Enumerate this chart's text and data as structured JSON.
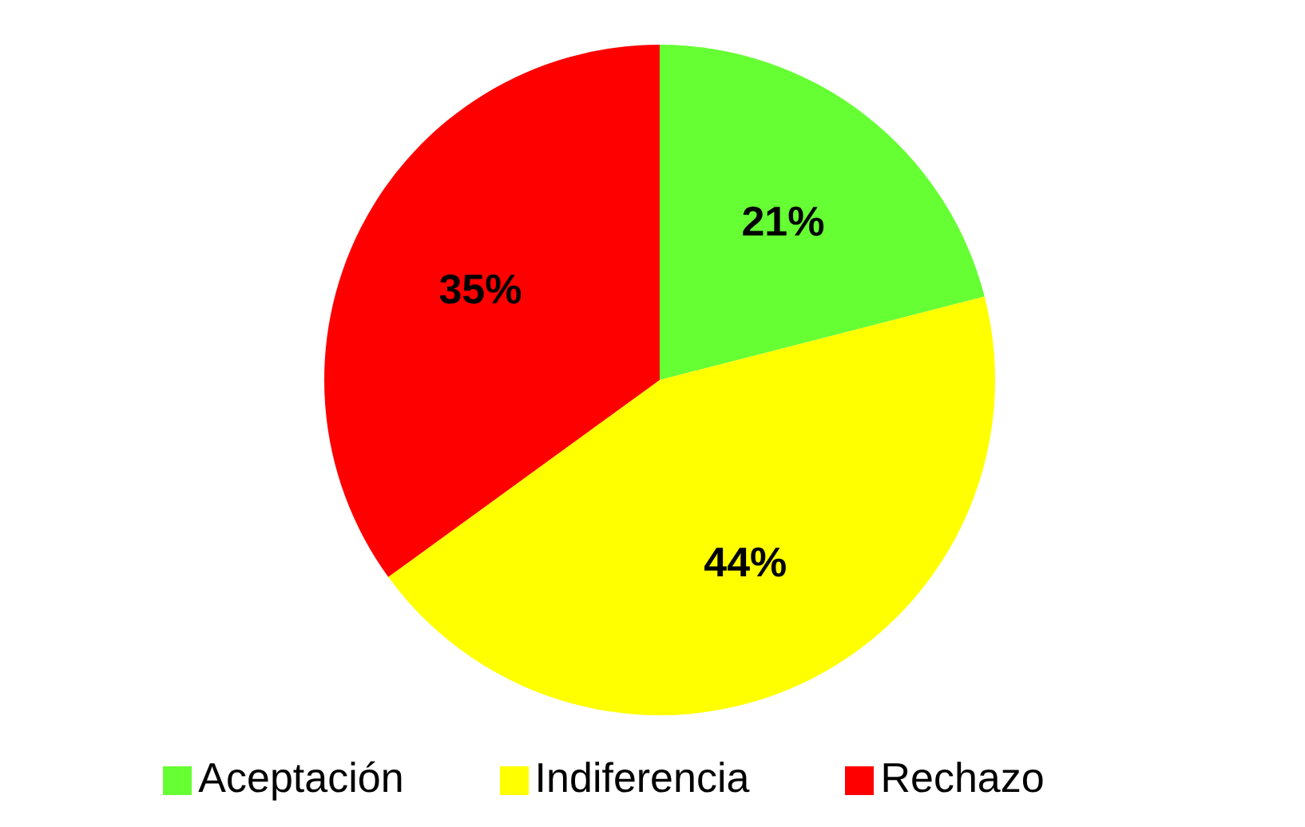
{
  "chart_data": {
    "type": "pie",
    "categories": [
      "Aceptación",
      "Indiferencia",
      "Rechazo"
    ],
    "values": [
      21,
      44,
      35
    ],
    "colors": [
      "#66ff33",
      "#ffff00",
      "#ff0000"
    ],
    "value_labels": [
      "21%",
      "44%",
      "35%"
    ],
    "legend": "bottom"
  }
}
